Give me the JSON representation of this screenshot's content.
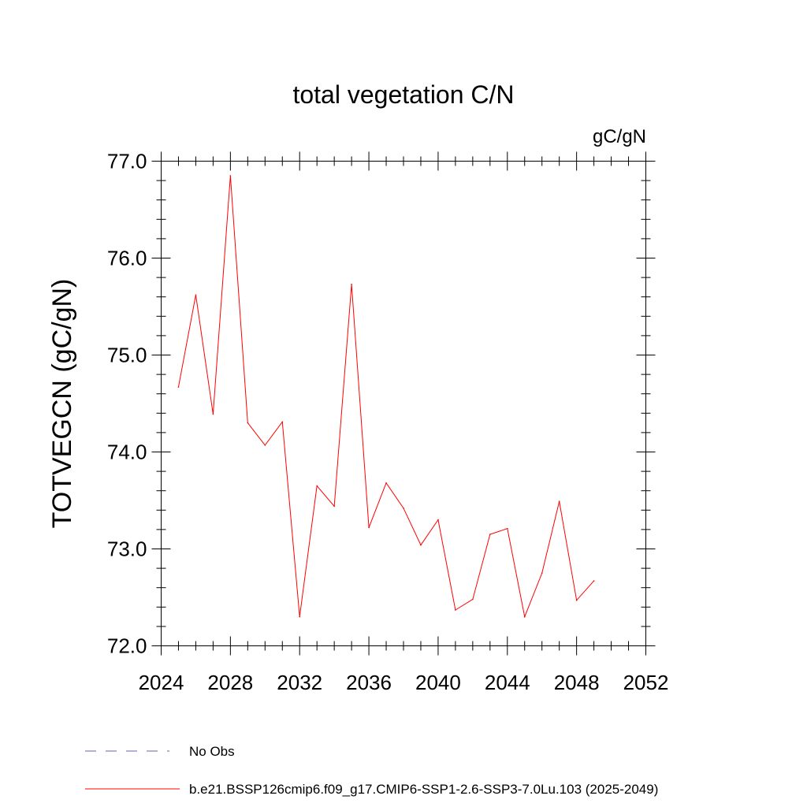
{
  "chart_data": {
    "type": "line",
    "title": "total vegetation C/N",
    "units_label": "gC/gN",
    "ylabel": "TOTVEGCN  (gC/gN)",
    "xlabel": "",
    "xlim": [
      2024,
      2052
    ],
    "ylim": [
      72.0,
      77.0
    ],
    "x_ticks": [
      2024,
      2028,
      2032,
      2036,
      2040,
      2044,
      2048,
      2052
    ],
    "x_tick_labels": [
      "2024",
      "2028",
      "2032",
      "2036",
      "2040",
      "2044",
      "2048",
      "2052"
    ],
    "x_minor_ticks": [
      2025,
      2026,
      2027,
      2029,
      2030,
      2031,
      2033,
      2034,
      2035,
      2037,
      2038,
      2039,
      2041,
      2042,
      2043,
      2045,
      2046,
      2047,
      2049,
      2050,
      2051
    ],
    "y_ticks": [
      72.0,
      73.0,
      74.0,
      75.0,
      76.0,
      77.0
    ],
    "y_tick_labels": [
      "72.0",
      "73.0",
      "74.0",
      "75.0",
      "76.0",
      "77.0"
    ],
    "y_minor_ticks": [
      72.2,
      72.4,
      72.6,
      72.8,
      73.2,
      73.4,
      73.6,
      73.8,
      74.2,
      74.4,
      74.6,
      74.8,
      75.2,
      75.4,
      75.6,
      75.8,
      76.2,
      76.4,
      76.6,
      76.8
    ],
    "grid": false,
    "series": [
      {
        "name": "b.e21.BSSP126cmip6.f09_g17.CMIP6-SSP1-2.6-SSP3-7.0Lu.103 (2025-2049)",
        "color": "#ff0000",
        "x": [
          2025,
          2026,
          2027,
          2028,
          2029,
          2030,
          2031,
          2032,
          2033,
          2034,
          2035,
          2036,
          2037,
          2038,
          2039,
          2040,
          2041,
          2042,
          2043,
          2044,
          2045,
          2046,
          2047,
          2048,
          2049
        ],
        "values": [
          74.67,
          75.62,
          74.39,
          76.85,
          74.3,
          74.07,
          74.31,
          72.3,
          73.65,
          73.44,
          75.73,
          73.22,
          73.68,
          73.42,
          73.04,
          73.3,
          72.37,
          72.48,
          73.15,
          73.21,
          72.3,
          72.75,
          73.49,
          72.47,
          72.67
        ]
      }
    ],
    "legend": {
      "placement": "bottom-left",
      "entries": [
        {
          "label": "No Obs",
          "color": "#6b5fb0",
          "style": "dashed"
        },
        {
          "label": "b.e21.BSSP126cmip6.f09_g17.CMIP6-SSP1-2.6-SSP3-7.0Lu.103 (2025-2049)",
          "color": "#ff0000",
          "style": "solid"
        }
      ]
    }
  }
}
